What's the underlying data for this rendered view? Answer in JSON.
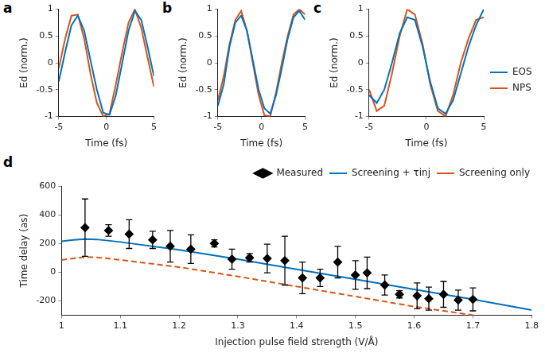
{
  "chart_data": [
    {
      "type": "line",
      "title": "a",
      "x_label": "Time (fs)",
      "y_label": "Ed (norm.)",
      "x": [
        -5,
        -4.33,
        -3.67,
        -3,
        -2.33,
        -1.67,
        -1,
        -0.33,
        0.33,
        1,
        1.67,
        2.33,
        3,
        3.67,
        4.33,
        5
      ],
      "xlim": [
        -5,
        5
      ],
      "xticks": [
        -5,
        0,
        5
      ],
      "ylim": [
        -1,
        1
      ],
      "yticks": [
        -1,
        -0.5,
        0,
        0.5,
        1
      ],
      "grid": false,
      "series": [
        {
          "name": "EOS",
          "color": "#0072bd",
          "values": [
            -0.35,
            0.2,
            0.7,
            0.88,
            0.6,
            0.05,
            -0.5,
            -0.93,
            -0.97,
            -0.6,
            0.0,
            0.6,
            0.97,
            0.8,
            0.3,
            -0.25
          ]
        },
        {
          "name": "NPS",
          "color": "#d95319",
          "values": [
            -0.1,
            0.45,
            0.88,
            0.9,
            0.45,
            -0.2,
            -0.75,
            -1.0,
            -0.95,
            -0.4,
            0.2,
            0.75,
            1.0,
            0.65,
            0.1,
            -0.45
          ]
        }
      ]
    },
    {
      "type": "line",
      "title": "b",
      "x_label": "Time (fs)",
      "y_label": "Ed (norm.)",
      "x": [
        -5,
        -4.33,
        -3.67,
        -3,
        -2.33,
        -1.67,
        -1,
        -0.33,
        0.33,
        1,
        1.67,
        2.33,
        3,
        3.67,
        4.33,
        5
      ],
      "xlim": [
        -5,
        5
      ],
      "xticks": [
        -5,
        0,
        5
      ],
      "ylim": [
        -1,
        1
      ],
      "yticks": [
        -1,
        -0.5,
        0,
        0.5,
        1
      ],
      "grid": false,
      "series": [
        {
          "name": "EOS",
          "color": "#0072bd",
          "values": [
            -0.8,
            -0.4,
            0.3,
            0.75,
            0.88,
            0.6,
            0.05,
            -0.5,
            -0.85,
            -0.95,
            -0.6,
            -0.1,
            0.45,
            0.85,
            0.97,
            0.8
          ]
        },
        {
          "name": "NPS",
          "color": "#d95319",
          "values": [
            -0.7,
            -0.25,
            0.35,
            0.8,
            0.97,
            0.6,
            0.0,
            -0.6,
            -0.98,
            -1.0,
            -0.55,
            0.0,
            0.5,
            0.9,
            1.0,
            0.9
          ]
        }
      ]
    },
    {
      "type": "line",
      "title": "c",
      "x_label": "Time (fs)",
      "y_label": "Ed (norm.)",
      "legend": "right",
      "x": [
        -5,
        -4.33,
        -3.67,
        -3,
        -2.33,
        -1.67,
        -1,
        -0.33,
        0.33,
        1,
        1.67,
        2.33,
        3,
        3.67,
        4.33,
        5
      ],
      "xlim": [
        -5,
        5
      ],
      "xticks": [
        -5,
        0,
        5
      ],
      "ylim": [
        -1,
        1
      ],
      "yticks": [
        -1,
        -0.5,
        0,
        0.5,
        1
      ],
      "grid": false,
      "series": [
        {
          "name": "EOS",
          "color": "#0072bd",
          "values": [
            -0.6,
            -0.75,
            -0.5,
            0.0,
            0.55,
            0.85,
            0.8,
            0.3,
            -0.35,
            -0.85,
            -0.95,
            -0.7,
            -0.2,
            0.3,
            0.7,
            1.0
          ]
        },
        {
          "name": "NPS",
          "color": "#d95319",
          "values": [
            -0.5,
            -0.9,
            -0.8,
            -0.2,
            0.5,
            1.0,
            0.9,
            0.35,
            -0.4,
            -0.9,
            -1.0,
            -0.6,
            0.0,
            0.45,
            0.8,
            0.85
          ]
        }
      ]
    },
    {
      "type": "scatter",
      "title": "d",
      "x_label": "Injection pulse field strength (V/Å)",
      "y_label": "Time delay (as)",
      "legend": "upper right",
      "xlim": [
        1,
        1.8
      ],
      "xticks": [
        1,
        1.1,
        1.2,
        1.3,
        1.4,
        1.5,
        1.6,
        1.7,
        1.8
      ],
      "ylim": [
        -300,
        600
      ],
      "yticks": [
        -200,
        0,
        200,
        400,
        600
      ],
      "grid": false,
      "series": [
        {
          "name": "Measured",
          "type": "scatter",
          "marker": "diamond",
          "color": "#000000",
          "x": [
            1.04,
            1.08,
            1.115,
            1.155,
            1.185,
            1.22,
            1.26,
            1.29,
            1.32,
            1.35,
            1.38,
            1.41,
            1.44,
            1.47,
            1.5,
            1.52,
            1.55,
            1.575,
            1.605,
            1.625,
            1.65,
            1.675,
            1.7
          ],
          "values": [
            310,
            290,
            265,
            225,
            180,
            160,
            200,
            90,
            100,
            95,
            80,
            -40,
            -40,
            70,
            -20,
            -5,
            -90,
            -155,
            -165,
            -185,
            -155,
            -195,
            -190
          ],
          "errors": [
            200,
            40,
            100,
            60,
            110,
            100,
            25,
            70,
            30,
            100,
            170,
            110,
            60,
            110,
            100,
            110,
            70,
            25,
            90,
            80,
            90,
            70,
            80
          ]
        },
        {
          "name": "Screening + τinj",
          "type": "line",
          "line_style": "solid",
          "color": "#0072bd",
          "x": [
            1.0,
            1.02,
            1.04,
            1.06,
            1.1,
            1.2,
            1.3,
            1.4,
            1.5,
            1.6,
            1.7,
            1.8
          ],
          "values": [
            215,
            225,
            230,
            228,
            210,
            155,
            90,
            20,
            -50,
            -120,
            -190,
            -265
          ]
        },
        {
          "name": "Screening only",
          "type": "line",
          "line_style": "dashed",
          "color": "#d95319",
          "x": [
            1.0,
            1.04,
            1.06,
            1.1,
            1.2,
            1.3,
            1.4,
            1.5,
            1.6,
            1.7
          ],
          "values": [
            85,
            105,
            103,
            85,
            35,
            -30,
            -100,
            -170,
            -240,
            -300
          ]
        }
      ]
    }
  ]
}
